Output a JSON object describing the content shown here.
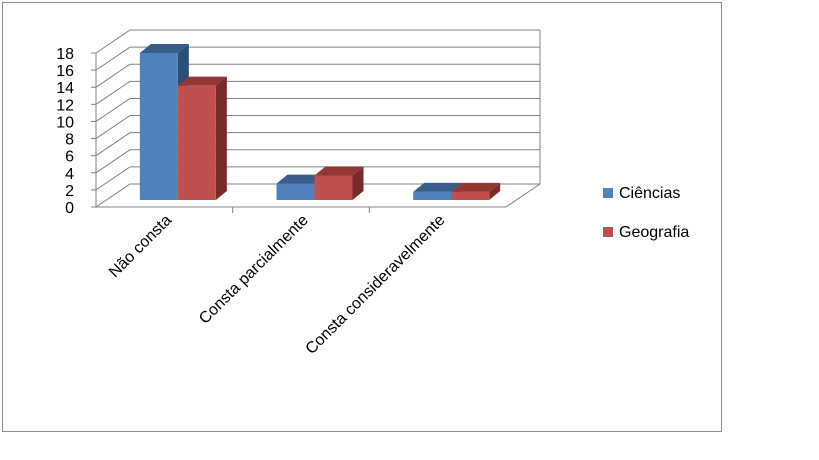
{
  "chart_data": {
    "type": "bar",
    "style": "3d-clustered",
    "categories": [
      "Não consta",
      "Consta parcialmente",
      "Consta consideravelmente"
    ],
    "series": [
      {
        "name": "Ciências",
        "values": [
          18,
          2,
          1
        ],
        "color": "#4F81BD",
        "top": "#385D8A",
        "side": "#2C4D75"
      },
      {
        "name": "Geografia",
        "values": [
          14,
          3,
          1
        ],
        "color": "#C0504D",
        "top": "#943634",
        "side": "#772C2A"
      }
    ],
    "ylim": [
      0,
      18
    ],
    "yticks": [
      0,
      2,
      4,
      6,
      8,
      10,
      12,
      14,
      16,
      18
    ],
    "grid": true,
    "legend": "right"
  }
}
